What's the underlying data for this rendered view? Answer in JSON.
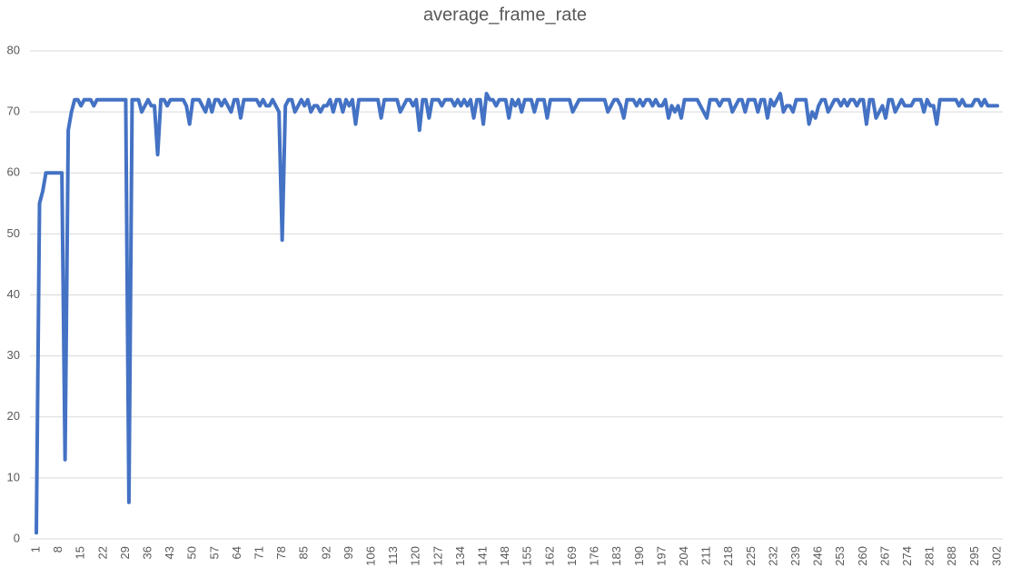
{
  "chart_data": {
    "type": "line",
    "title": "average_frame_rate",
    "categories": [
      1,
      null,
      null,
      null,
      null,
      null,
      null,
      8,
      null,
      null,
      null,
      null,
      null,
      null,
      15,
      null,
      null,
      null,
      null,
      null,
      null,
      22,
      null,
      null,
      null,
      null,
      null,
      null,
      29,
      null,
      null,
      null,
      null,
      null,
      null,
      36,
      null,
      null,
      null,
      null,
      null,
      null,
      43,
      null,
      null,
      null,
      null,
      null,
      null,
      50,
      null,
      null,
      null,
      null,
      null,
      null,
      57,
      null,
      null,
      null,
      null,
      null,
      null,
      64,
      null,
      null,
      null,
      null,
      null,
      null,
      71,
      null,
      null,
      null,
      null,
      null,
      null,
      78,
      null,
      null,
      null,
      null,
      null,
      null,
      85,
      null,
      null,
      null,
      null,
      null,
      null,
      92,
      null,
      null,
      null,
      null,
      null,
      null,
      99,
      null,
      null,
      null,
      null,
      null,
      null,
      106,
      null,
      null,
      null,
      null,
      null,
      null,
      113,
      null,
      null,
      null,
      null,
      null,
      null,
      120,
      null,
      null,
      null,
      null,
      null,
      null,
      127,
      null,
      null,
      null,
      null,
      null,
      null,
      134,
      null,
      null,
      null,
      null,
      null,
      null,
      141,
      null,
      null,
      null,
      null,
      null,
      null,
      148,
      null,
      null,
      null,
      null,
      null,
      null,
      155,
      null,
      null,
      null,
      null,
      null,
      null,
      162,
      null,
      null,
      null,
      null,
      null,
      null,
      169,
      null,
      null,
      null,
      null,
      null,
      null,
      176,
      null,
      null,
      null,
      null,
      null,
      null,
      183,
      null,
      null,
      null,
      null,
      null,
      null,
      190,
      null,
      null,
      null,
      null,
      null,
      null,
      197,
      null,
      null,
      null,
      null,
      null,
      null,
      204,
      null,
      null,
      null,
      null,
      null,
      null,
      211,
      null,
      null,
      null,
      null,
      null,
      null,
      218,
      null,
      null,
      null,
      null,
      null,
      null,
      225,
      null,
      null,
      null,
      null,
      null,
      null,
      232,
      null,
      null,
      null,
      null,
      null,
      null,
      239,
      null,
      null,
      null,
      null,
      null,
      null,
      246,
      null,
      null,
      null,
      null,
      null,
      null,
      253,
      null,
      null,
      null,
      null,
      null,
      null,
      260,
      null,
      null,
      null,
      null,
      null,
      null,
      267,
      null,
      null,
      null,
      null,
      null,
      null,
      274,
      null,
      null,
      null,
      null,
      null,
      null,
      281,
      null,
      null,
      null,
      null,
      null,
      null,
      288,
      null,
      null,
      null,
      null,
      null,
      null,
      295,
      null,
      null,
      null,
      null,
      null,
      null,
      302
    ],
    "series": [
      {
        "name": "average_frame_rate",
        "color": "#4472c4",
        "values": [
          1,
          55,
          57,
          60,
          60,
          60,
          60,
          60,
          60,
          13,
          67,
          70,
          72,
          72,
          71,
          72,
          72,
          72,
          71,
          72,
          72,
          72,
          72,
          72,
          72,
          72,
          72,
          72,
          72,
          6,
          72,
          72,
          72,
          70,
          71,
          72,
          71,
          71,
          63,
          72,
          72,
          71,
          72,
          72,
          72,
          72,
          72,
          71,
          68,
          72,
          72,
          72,
          71,
          70,
          72,
          70,
          72,
          72,
          71,
          72,
          71,
          70,
          72,
          72,
          69,
          72,
          72,
          72,
          72,
          72,
          71,
          72,
          71,
          71,
          72,
          71,
          70,
          49,
          71,
          72,
          72,
          70,
          71,
          72,
          71,
          72,
          70,
          71,
          71,
          70,
          71,
          71,
          72,
          70,
          72,
          72,
          70,
          72,
          71,
          72,
          68,
          72,
          72,
          72,
          72,
          72,
          72,
          72,
          69,
          72,
          72,
          72,
          72,
          72,
          70,
          71,
          72,
          72,
          71,
          72,
          67,
          72,
          72,
          69,
          72,
          72,
          72,
          71,
          72,
          72,
          72,
          71,
          72,
          71,
          72,
          71,
          72,
          69,
          72,
          72,
          68,
          73,
          72,
          72,
          71,
          72,
          72,
          72,
          69,
          72,
          71,
          72,
          70,
          72,
          72,
          72,
          70,
          72,
          72,
          72,
          69,
          72,
          72,
          72,
          72,
          72,
          72,
          72,
          70,
          71,
          72,
          72,
          72,
          72,
          72,
          72,
          72,
          72,
          72,
          70,
          71,
          72,
          72,
          71,
          69,
          72,
          72,
          72,
          71,
          72,
          71,
          72,
          72,
          71,
          72,
          71,
          71,
          72,
          69,
          71,
          70,
          71,
          69,
          72,
          72,
          72,
          72,
          72,
          71,
          70,
          69,
          72,
          72,
          72,
          71,
          72,
          72,
          72,
          70,
          71,
          72,
          72,
          70,
          72,
          72,
          72,
          70,
          72,
          72,
          69,
          72,
          71,
          72,
          73,
          70,
          71,
          71,
          70,
          72,
          72,
          72,
          72,
          68,
          70,
          69,
          71,
          72,
          72,
          70,
          71,
          72,
          72,
          71,
          72,
          71,
          72,
          72,
          71,
          72,
          72,
          68,
          72,
          72,
          69,
          70,
          71,
          69,
          72,
          72,
          70,
          71,
          72,
          71,
          71,
          71,
          72,
          72,
          72,
          70,
          72,
          71,
          71,
          68,
          72,
          72,
          72,
          72,
          72,
          72,
          71,
          72,
          71,
          71,
          71,
          72,
          72,
          71,
          72,
          71,
          71,
          71,
          71
        ]
      }
    ],
    "ylim": [
      0,
      80
    ],
    "yticks": [
      0,
      10,
      20,
      30,
      40,
      50,
      60,
      70,
      80
    ],
    "grid": true
  }
}
